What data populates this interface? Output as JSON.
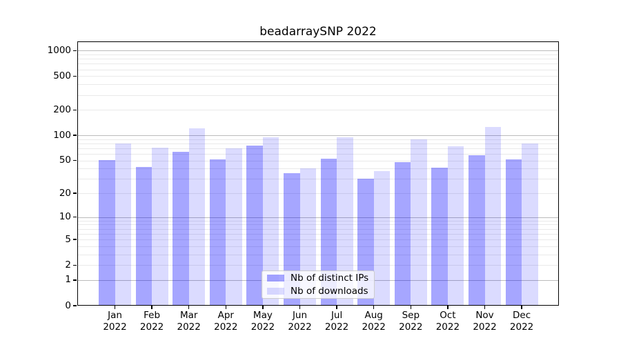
{
  "title": "beadarraySNP 2022",
  "legend": {
    "items": [
      {
        "label": "Nb of distinct IPs",
        "color": "#0000ff59"
      },
      {
        "label": "Nb of downloads",
        "color": "#0000ff24"
      }
    ]
  },
  "chart_data": {
    "type": "bar",
    "title": "beadarraySNP 2022",
    "categories": [
      "Jan 2022",
      "Feb 2022",
      "Mar 2022",
      "Apr 2022",
      "May 2022",
      "Jun 2022",
      "Jul 2022",
      "Aug 2022",
      "Sep 2022",
      "Oct 2022",
      "Nov 2022",
      "Dec 2022"
    ],
    "series": [
      {
        "name": "Nb of distinct IPs",
        "color": "#0000ff59",
        "values": [
          51,
          42,
          63,
          52,
          76,
          35,
          53,
          30,
          48,
          41,
          58,
          52
        ]
      },
      {
        "name": "Nb of downloads",
        "color": "#0000ff24",
        "values": [
          80,
          71,
          120,
          70,
          95,
          40,
          94,
          37,
          90,
          74,
          125,
          80
        ]
      }
    ],
    "yscale": "log1p",
    "ylim": [
      0,
      1283
    ],
    "yticks": [
      1000,
      500,
      200,
      100,
      50,
      20,
      10,
      5,
      2,
      1,
      0
    ],
    "grid": true,
    "grid_major_color": "#bbbbbb",
    "grid_minor_color": "#e9e9e9",
    "legend_position": "lower-center-inside"
  }
}
